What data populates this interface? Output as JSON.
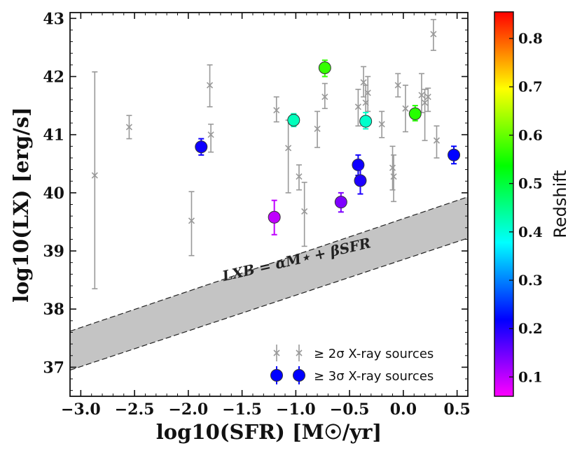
{
  "chart_data": {
    "type": "scatter",
    "title": "",
    "xlabel": "log10(SFR) [M☉/yr]",
    "ylabel": "log10(LX) [erg/s]",
    "xlim": [
      -3.1,
      0.6
    ],
    "ylim": [
      36.5,
      43.1
    ],
    "xticks": [
      -3.0,
      -2.5,
      -2.0,
      -1.5,
      -1.0,
      -0.5,
      0.0,
      0.5
    ],
    "xtick_labels": [
      "−3.0",
      "−2.5",
      "−2.0",
      "−1.5",
      "−1.0",
      "−0.5",
      "0.0",
      "0.5"
    ],
    "yticks": [
      37,
      38,
      39,
      40,
      41,
      42,
      43
    ],
    "ytick_labels": [
      "37",
      "38",
      "39",
      "40",
      "41",
      "42",
      "43"
    ],
    "band": {
      "label": "LXB = αM⋆ + βSFR",
      "x": [
        -3.1,
        0.6
      ],
      "lower": [
        36.95,
        39.22
      ],
      "upper": [
        37.62,
        39.93
      ]
    },
    "series": [
      {
        "name": "≥ 2σ X-ray sources",
        "marker": "x",
        "color": "#999999",
        "points": [
          {
            "x": -2.87,
            "y": 40.3,
            "ylo": 38.35,
            "yhi": 42.08
          },
          {
            "x": -2.55,
            "y": 41.13,
            "ylo": 40.93,
            "yhi": 41.33
          },
          {
            "x": -1.97,
            "y": 39.52,
            "ylo": 38.92,
            "yhi": 40.02
          },
          {
            "x": -1.8,
            "y": 41.85,
            "ylo": 41.48,
            "yhi": 42.2
          },
          {
            "x": -1.79,
            "y": 41.0,
            "ylo": 40.7,
            "yhi": 41.18
          },
          {
            "x": -1.18,
            "y": 41.42,
            "ylo": 41.22,
            "yhi": 41.65
          },
          {
            "x": -1.07,
            "y": 40.77,
            "ylo": 40.0,
            "yhi": 41.25
          },
          {
            "x": -0.97,
            "y": 40.28,
            "ylo": 40.05,
            "yhi": 40.48
          },
          {
            "x": -0.92,
            "y": 39.68,
            "ylo": 39.08,
            "yhi": 40.18
          },
          {
            "x": -0.8,
            "y": 41.1,
            "ylo": 40.78,
            "yhi": 41.4
          },
          {
            "x": -0.73,
            "y": 41.65,
            "ylo": 41.45,
            "yhi": 41.88
          },
          {
            "x": -0.42,
            "y": 41.48,
            "ylo": 41.15,
            "yhi": 41.78
          },
          {
            "x": -0.37,
            "y": 41.9,
            "ylo": 41.65,
            "yhi": 42.17
          },
          {
            "x": -0.35,
            "y": 41.55,
            "ylo": 41.25,
            "yhi": 41.85
          },
          {
            "x": -0.33,
            "y": 41.72,
            "ylo": 41.4,
            "yhi": 42.0
          },
          {
            "x": -0.2,
            "y": 41.18,
            "ylo": 40.95,
            "yhi": 41.4
          },
          {
            "x": -0.1,
            "y": 40.43,
            "ylo": 40.05,
            "yhi": 40.8
          },
          {
            "x": -0.09,
            "y": 40.28,
            "ylo": 39.85,
            "yhi": 40.65
          },
          {
            "x": -0.05,
            "y": 41.85,
            "ylo": 41.65,
            "yhi": 42.05
          },
          {
            "x": 0.02,
            "y": 41.45,
            "ylo": 41.05,
            "yhi": 41.85
          },
          {
            "x": 0.17,
            "y": 41.68,
            "ylo": 41.38,
            "yhi": 42.05
          },
          {
            "x": 0.2,
            "y": 41.55,
            "ylo": 40.9,
            "yhi": 41.78
          },
          {
            "x": 0.23,
            "y": 41.65,
            "ylo": 41.4,
            "yhi": 41.8
          },
          {
            "x": 0.28,
            "y": 42.73,
            "ylo": 42.45,
            "yhi": 42.98
          },
          {
            "x": 0.31,
            "y": 40.9,
            "ylo": 40.6,
            "yhi": 41.15
          }
        ]
      },
      {
        "name": "≥ 3σ X-ray sources",
        "marker": "circle",
        "points": [
          {
            "x": -1.88,
            "y": 40.79,
            "ylo": 40.65,
            "yhi": 40.93,
            "z": 0.21
          },
          {
            "x": -1.2,
            "y": 39.58,
            "ylo": 39.28,
            "yhi": 39.87,
            "z": 0.1
          },
          {
            "x": -1.02,
            "y": 41.25,
            "ylo": 41.14,
            "yhi": 41.36,
            "z": 0.42
          },
          {
            "x": -0.73,
            "y": 42.15,
            "ylo": 42.0,
            "yhi": 42.28,
            "z": 0.57
          },
          {
            "x": -0.58,
            "y": 39.84,
            "ylo": 39.67,
            "yhi": 40.0,
            "z": 0.14
          },
          {
            "x": -0.42,
            "y": 40.48,
            "ylo": 40.3,
            "yhi": 40.65,
            "z": 0.21
          },
          {
            "x": -0.4,
            "y": 40.21,
            "ylo": 39.98,
            "yhi": 40.42,
            "z": 0.2
          },
          {
            "x": -0.35,
            "y": 41.23,
            "ylo": 41.1,
            "yhi": 41.38,
            "z": 0.41
          },
          {
            "x": 0.11,
            "y": 41.36,
            "ylo": 41.24,
            "yhi": 41.5,
            "z": 0.56
          },
          {
            "x": 0.47,
            "y": 40.65,
            "ylo": 40.5,
            "yhi": 40.8,
            "z": 0.22
          }
        ]
      }
    ],
    "colorbar": {
      "label": "Redshift",
      "range": [
        0.06,
        0.855
      ],
      "ticks": [
        0.1,
        0.2,
        0.3,
        0.4,
        0.5,
        0.6,
        0.7,
        0.8
      ],
      "tick_labels": [
        "0.1",
        "0.2",
        "0.3",
        "0.4",
        "0.5",
        "0.6",
        "0.7",
        "0.8"
      ],
      "stops": [
        "#ff00ff",
        "#7f00ff",
        "#0000ff",
        "#007fff",
        "#00ffff",
        "#00ff7f",
        "#00ff00",
        "#7fff00",
        "#ffff00",
        "#ff7f00",
        "#ff0000"
      ]
    },
    "legend": {
      "placement": "bottom-right",
      "entries": [
        {
          "label": "≥ 2σ X-ray sources",
          "marker": "x"
        },
        {
          "label": "≥ 3σ X-ray sources",
          "marker": "circle",
          "color": "#0000ff"
        }
      ]
    }
  }
}
